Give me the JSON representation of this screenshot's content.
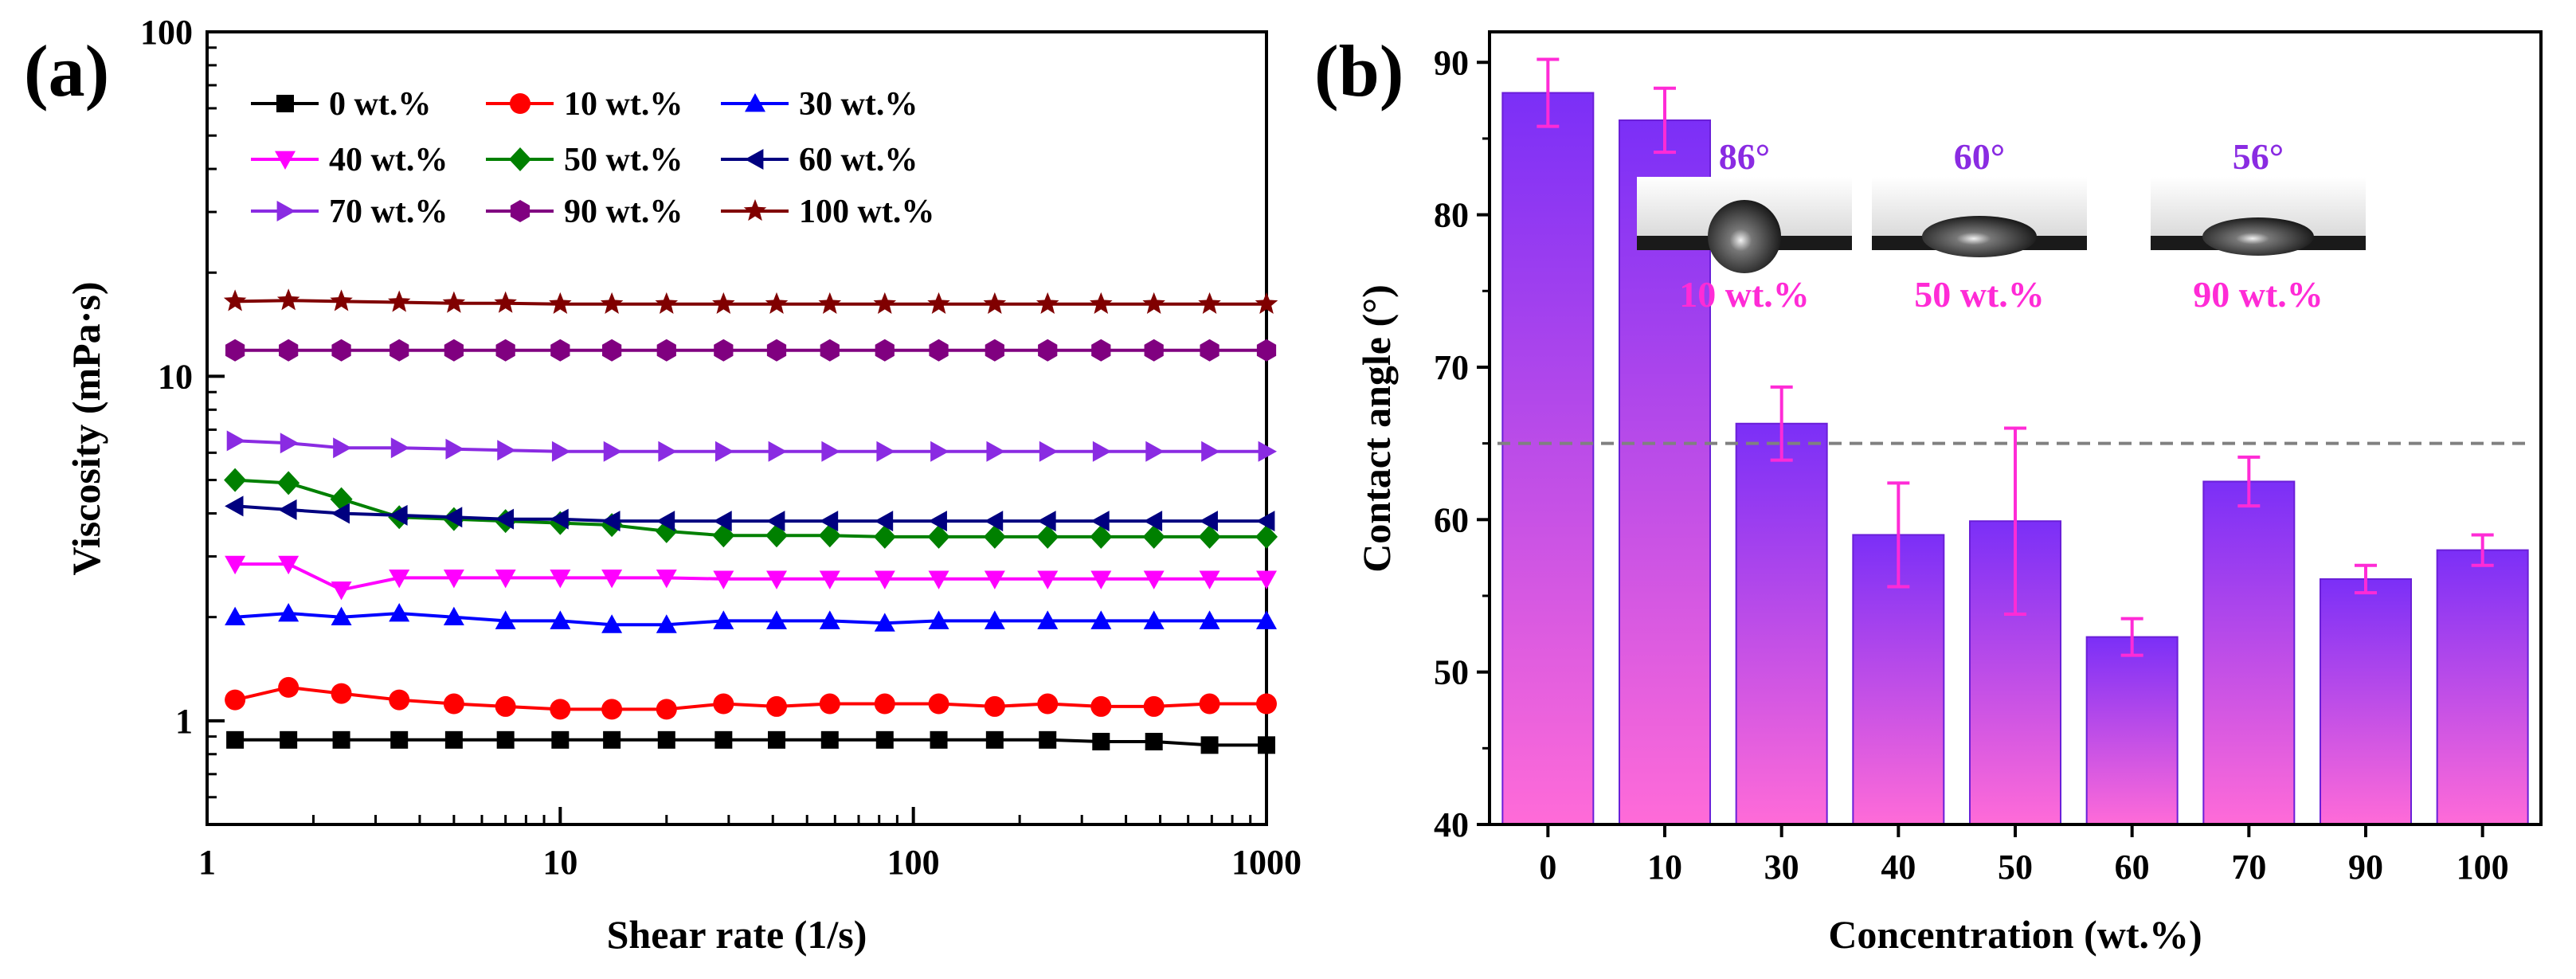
{
  "chart_data": [
    {
      "panel_label": "(a)",
      "type": "line",
      "xscale": "log",
      "yscale": "log",
      "xlabel": "Shear rate (1/s)",
      "ylabel": "Viscosity (mPa·s)",
      "xlim": [
        1,
        1000
      ],
      "ylim": [
        0.5,
        100
      ],
      "x_ticks": [
        "1",
        "10",
        "100",
        "1000"
      ],
      "y_ticks": [
        "1",
        "10",
        "100"
      ],
      "legend_position": "top",
      "x": [
        1.2,
        1.7,
        2.4,
        3.5,
        5,
        7,
        10,
        14,
        20,
        29,
        41,
        58,
        83,
        118,
        170,
        240,
        340,
        480,
        690,
        1000
      ],
      "series": [
        {
          "name": "0 wt.%",
          "color": "#000000",
          "marker": "square",
          "values": [
            0.88,
            0.88,
            0.88,
            0.88,
            0.88,
            0.88,
            0.88,
            0.88,
            0.88,
            0.88,
            0.88,
            0.88,
            0.88,
            0.88,
            0.88,
            0.88,
            0.87,
            0.87,
            0.85,
            0.85
          ]
        },
        {
          "name": "10 wt.%",
          "color": "#ff0000",
          "marker": "circle",
          "values": [
            1.15,
            1.25,
            1.2,
            1.15,
            1.12,
            1.1,
            1.08,
            1.08,
            1.08,
            1.12,
            1.1,
            1.12,
            1.12,
            1.12,
            1.1,
            1.12,
            1.1,
            1.1,
            1.12,
            1.12
          ]
        },
        {
          "name": "30 wt.%",
          "color": "#0000ff",
          "marker": "triangle-up",
          "values": [
            2.0,
            2.05,
            2.0,
            2.05,
            2.0,
            1.95,
            1.95,
            1.9,
            1.9,
            1.95,
            1.95,
            1.95,
            1.92,
            1.95,
            1.95,
            1.95,
            1.95,
            1.95,
            1.95,
            1.95
          ]
        },
        {
          "name": "40 wt.%",
          "color": "#ff00ff",
          "marker": "triangle-down",
          "values": [
            2.85,
            2.85,
            2.4,
            2.6,
            2.6,
            2.6,
            2.6,
            2.6,
            2.6,
            2.58,
            2.58,
            2.58,
            2.58,
            2.58,
            2.58,
            2.58,
            2.58,
            2.58,
            2.58,
            2.58
          ]
        },
        {
          "name": "50 wt.%",
          "color": "#008000",
          "marker": "diamond",
          "values": [
            5.0,
            4.9,
            4.4,
            3.9,
            3.85,
            3.8,
            3.75,
            3.7,
            3.55,
            3.45,
            3.45,
            3.45,
            3.42,
            3.42,
            3.42,
            3.42,
            3.42,
            3.42,
            3.42,
            3.42
          ]
        },
        {
          "name": "60 wt.%",
          "color": "#000080",
          "marker": "triangle-left",
          "values": [
            4.2,
            4.1,
            4.0,
            3.95,
            3.9,
            3.85,
            3.85,
            3.8,
            3.8,
            3.8,
            3.8,
            3.8,
            3.8,
            3.8,
            3.8,
            3.8,
            3.8,
            3.8,
            3.8,
            3.8
          ]
        },
        {
          "name": "70 wt.%",
          "color": "#8a2be2",
          "marker": "triangle-right",
          "values": [
            6.5,
            6.4,
            6.2,
            6.2,
            6.15,
            6.1,
            6.05,
            6.05,
            6.05,
            6.05,
            6.05,
            6.05,
            6.05,
            6.05,
            6.05,
            6.05,
            6.05,
            6.05,
            6.05,
            6.05
          ]
        },
        {
          "name": "90 wt.%",
          "color": "#800080",
          "marker": "hexagon",
          "values": [
            11.9,
            11.9,
            11.9,
            11.9,
            11.9,
            11.9,
            11.9,
            11.9,
            11.9,
            11.9,
            11.9,
            11.9,
            11.9,
            11.9,
            11.9,
            11.9,
            11.9,
            11.9,
            11.9,
            11.9
          ]
        },
        {
          "name": "100 wt.%",
          "color": "#800000",
          "marker": "star",
          "values": [
            16.5,
            16.6,
            16.5,
            16.4,
            16.3,
            16.3,
            16.2,
            16.2,
            16.2,
            16.2,
            16.2,
            16.2,
            16.2,
            16.2,
            16.2,
            16.2,
            16.2,
            16.2,
            16.2,
            16.2
          ]
        }
      ]
    },
    {
      "panel_label": "(b)",
      "type": "bar",
      "xlabel": "Concentration (wt.%)",
      "ylabel": "Contact angle (°)",
      "ylim": [
        40,
        92
      ],
      "y_ticks": [
        "40",
        "50",
        "60",
        "70",
        "80",
        "90"
      ],
      "categories": [
        "0",
        "10",
        "30",
        "40",
        "50",
        "60",
        "70",
        "90",
        "100"
      ],
      "values": [
        88.0,
        86.2,
        66.3,
        59.0,
        59.9,
        52.3,
        62.5,
        56.1,
        58.0
      ],
      "errors": [
        2.2,
        2.1,
        2.4,
        3.4,
        6.1,
        1.2,
        1.6,
        0.9,
        1.0
      ],
      "reference_line": 65,
      "bar_gradient": {
        "top": "#7b2ff7",
        "bottom": "#ff6bd8"
      },
      "error_color": "#ff2bd6",
      "reference_line_color": "#808080",
      "insets": [
        {
          "angle": "86°",
          "label": "10 wt.%"
        },
        {
          "angle": "60°",
          "label": "50 wt.%"
        },
        {
          "angle": "56°",
          "label": "90 wt.%"
        }
      ]
    }
  ]
}
